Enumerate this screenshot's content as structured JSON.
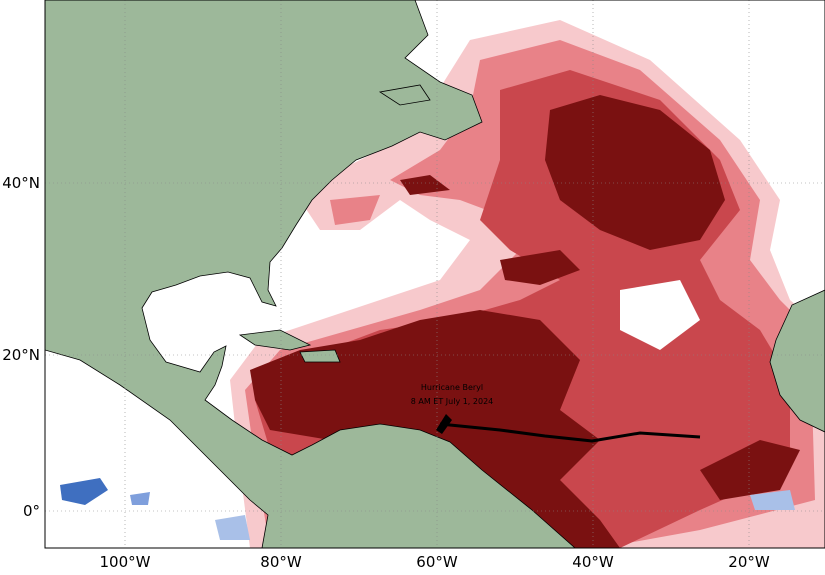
{
  "map": {
    "lat_labels": [
      "40°N",
      "20°N",
      "0°"
    ],
    "lon_labels": [
      "100°W",
      "80°W",
      "60°W",
      "40°W",
      "20°W"
    ],
    "annotation": {
      "name": "Hurricane Beryl",
      "time": "8 AM ET July 1, 2024"
    }
  }
}
